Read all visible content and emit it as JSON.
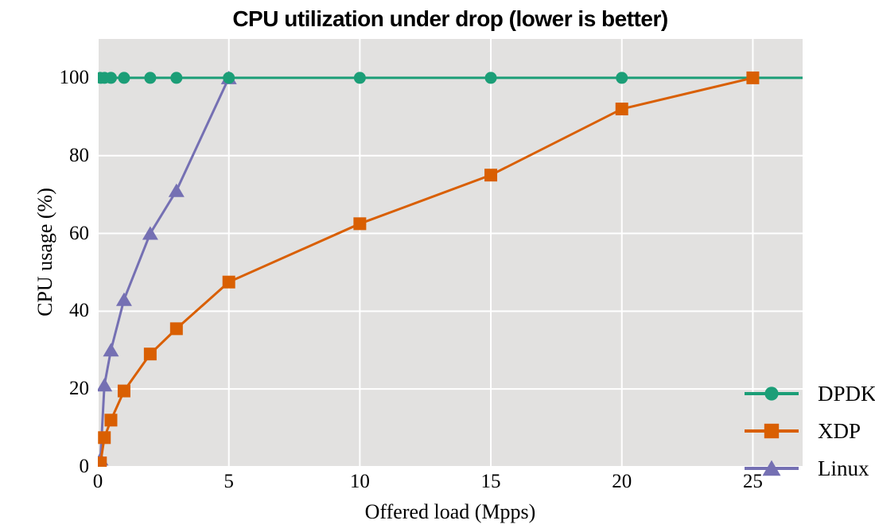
{
  "chart_data": {
    "type": "line",
    "title": "CPU utilization under drop (lower is better)",
    "xlabel": "Offered load (Mpps)",
    "ylabel": "CPU usage (%)",
    "xlim": [
      0,
      26.9
    ],
    "ylim": [
      0,
      110
    ],
    "xticks": [
      0,
      5,
      10,
      15,
      20,
      25
    ],
    "yticks": [
      0,
      20,
      40,
      60,
      80,
      100
    ],
    "grid": true,
    "plot_background": "#e2e1e0",
    "grid_color": "#ffffff",
    "text_color": "#000000",
    "legend_position": "lower-right-inside",
    "draw_order": [
      "Linux",
      "DPDK",
      "XDP"
    ],
    "series": [
      {
        "name": "DPDK",
        "color": "#1b9e77",
        "marker": "circle",
        "extend_right": true,
        "x": [
          0.1,
          0.25,
          0.5,
          1,
          2,
          3,
          5,
          10,
          15,
          20,
          25
        ],
        "y": [
          100,
          100,
          100,
          100,
          100,
          100,
          100,
          100,
          100,
          100,
          100
        ]
      },
      {
        "name": "XDP",
        "color": "#d95f02",
        "marker": "square",
        "extend_right": false,
        "x": [
          0.1,
          0.25,
          0.5,
          1,
          2,
          3,
          5,
          10,
          15,
          20,
          25
        ],
        "y": [
          1,
          7.5,
          12,
          19.5,
          29,
          35.5,
          47.5,
          62.5,
          75,
          92,
          100
        ]
      },
      {
        "name": "Linux",
        "color": "#7570b3",
        "marker": "triangle",
        "extend_right": false,
        "x": [
          0.1,
          0.25,
          0.5,
          1,
          2,
          3,
          5
        ],
        "y": [
          2,
          21,
          30,
          43,
          60,
          71,
          100
        ]
      }
    ]
  }
}
